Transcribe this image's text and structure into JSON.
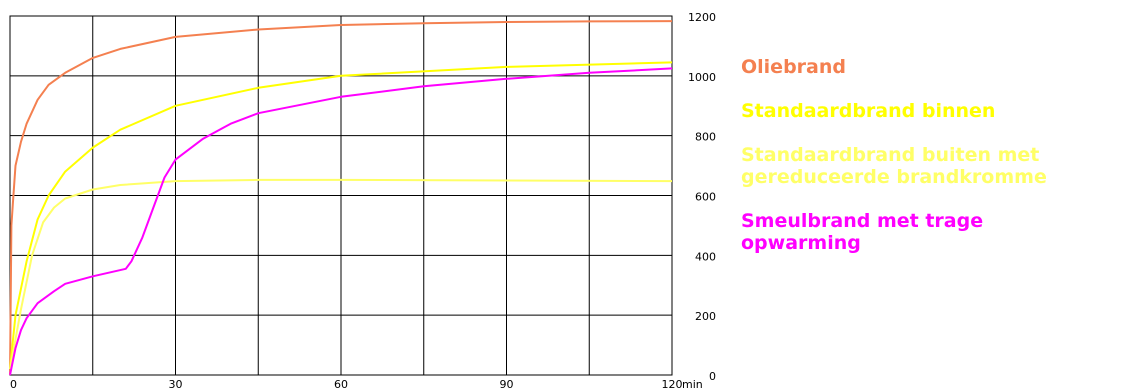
{
  "chart_data": {
    "type": "line",
    "title": "",
    "xlabel": "",
    "ylabel": "",
    "x_unit": "min",
    "xlim": [
      0,
      120
    ],
    "ylim": [
      0,
      1200
    ],
    "x_ticks": [
      "0",
      "30",
      "60",
      "90",
      "120"
    ],
    "y_ticks": [
      "0",
      "200",
      "400",
      "600",
      "800",
      "1000",
      "1200"
    ],
    "grid": true,
    "legend_position": "right",
    "series": [
      {
        "name": "Oliebrand",
        "color": "#f48050",
        "x": [
          0,
          0.25,
          0.5,
          1,
          2,
          3,
          5,
          7,
          10,
          15,
          20,
          30,
          45,
          60,
          75,
          90,
          105,
          120
        ],
        "y": [
          0,
          500,
          570,
          700,
          780,
          840,
          920,
          970,
          1010,
          1060,
          1090,
          1130,
          1155,
          1170,
          1176,
          1180,
          1182,
          1183
        ]
      },
      {
        "name": "Standaardbrand binnen",
        "color": "#ffff00",
        "x": [
          0,
          1,
          3,
          5,
          7,
          10,
          15,
          20,
          30,
          45,
          60,
          90,
          120
        ],
        "y": [
          20,
          200,
          380,
          520,
          600,
          680,
          760,
          820,
          900,
          960,
          1000,
          1030,
          1045
        ]
      },
      {
        "name": "Standaardbrand buiten met\ngereduceerde brandkromme",
        "color": "#ffff66",
        "x": [
          0,
          2,
          4,
          6,
          8,
          10,
          15,
          20,
          30,
          45,
          60,
          90,
          120
        ],
        "y": [
          20,
          220,
          400,
          510,
          560,
          590,
          620,
          635,
          648,
          652,
          652,
          650,
          648
        ]
      },
      {
        "name": "Smeulbrand met trage\nopwarming",
        "color": "#ff00ff",
        "x": [
          0,
          1,
          2,
          3,
          5,
          8,
          10,
          15,
          21,
          22,
          24,
          26,
          28,
          30,
          35,
          40,
          45,
          60,
          75,
          90,
          105,
          120
        ],
        "y": [
          0,
          90,
          150,
          190,
          240,
          280,
          305,
          330,
          355,
          380,
          460,
          560,
          660,
          720,
          790,
          840,
          875,
          930,
          965,
          990,
          1010,
          1025
        ]
      }
    ]
  }
}
